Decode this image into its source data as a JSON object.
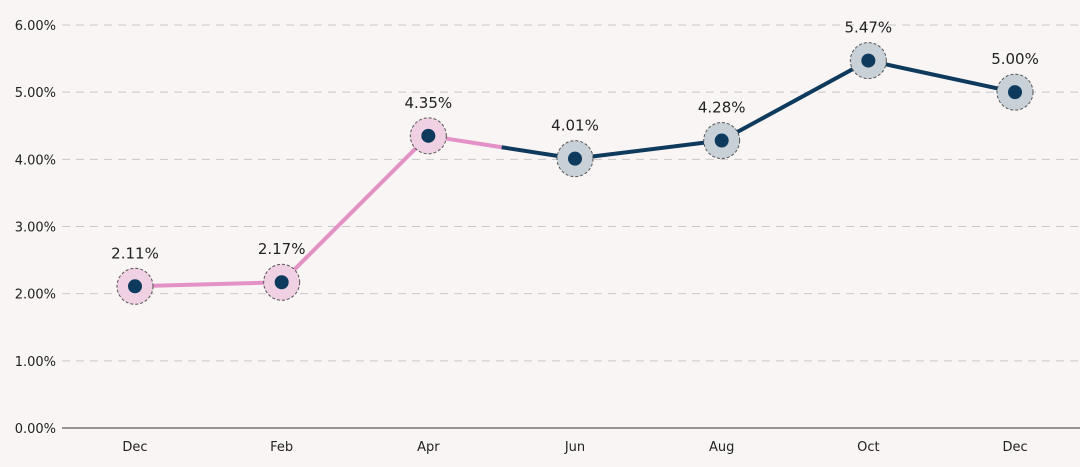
{
  "chart_data": {
    "type": "line",
    "categories": [
      "Dec",
      "Feb",
      "Apr",
      "Jun",
      "Aug",
      "Oct",
      "Dec"
    ],
    "values": [
      2.11,
      2.17,
      4.35,
      4.01,
      4.28,
      5.47,
      5.0
    ],
    "data_labels": [
      "2.11%",
      "2.17%",
      "4.35%",
      "4.01%",
      "4.28%",
      "5.47%",
      "5.00%"
    ],
    "ylim": [
      0,
      6
    ],
    "y_ticks": [
      "0.00%",
      "1.00%",
      "2.00%",
      "3.00%",
      "4.00%",
      "5.00%",
      "6.00%"
    ],
    "grid": true,
    "highlighted_points": 3,
    "colors": {
      "highlight_line": "#e391c6",
      "line": "#0e3a5d",
      "highlight_halo": "#f0d0e3",
      "halo": "#c8d0d8",
      "marker": "#0e3a5d",
      "grid": "#c8c8c8"
    }
  }
}
